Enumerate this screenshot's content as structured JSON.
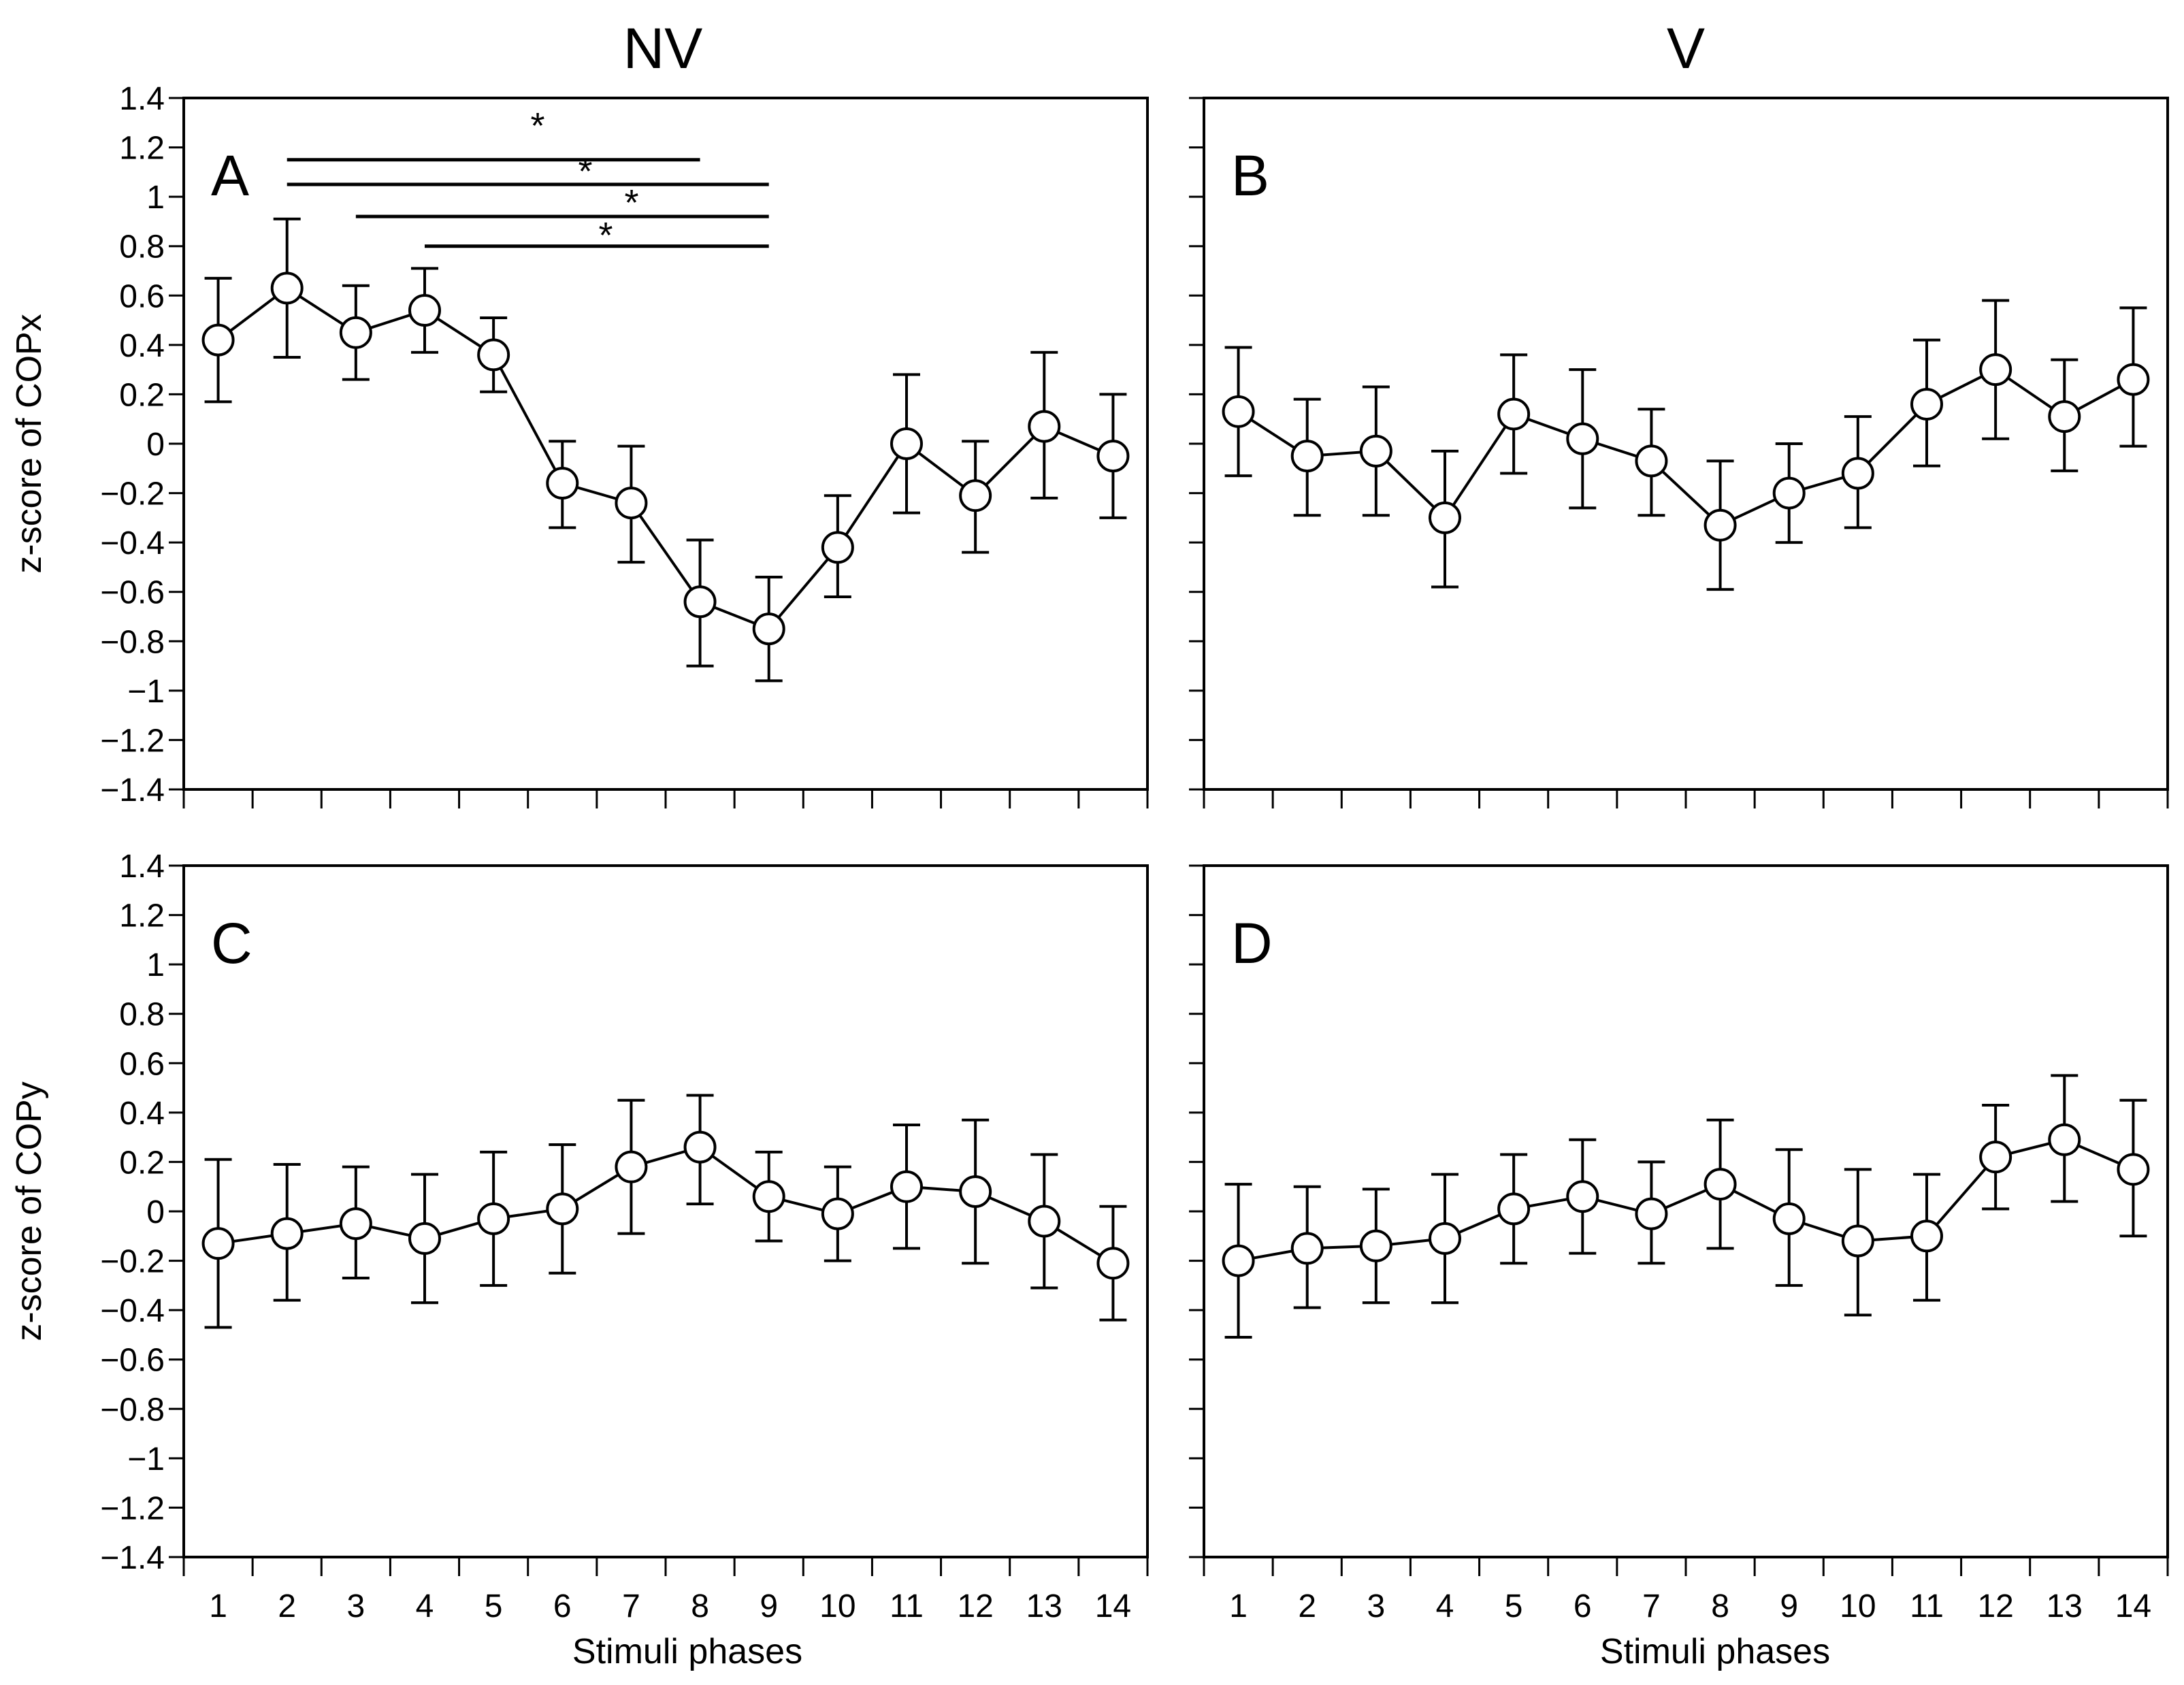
{
  "chart_data": {
    "type": "line",
    "column_titles": [
      "NV",
      "V"
    ],
    "x_categories": [
      "1",
      "2",
      "3",
      "4",
      "5",
      "6",
      "7",
      "8",
      "9",
      "10",
      "11",
      "12",
      "13",
      "14"
    ],
    "y_ticks": [
      "1.4",
      "1.2",
      "1",
      "0.8",
      "0.6",
      "0.4",
      "0.2",
      "0",
      "−0.2",
      "−0.4",
      "−0.6",
      "−0.8",
      "−1",
      "−1.2",
      "−1.4"
    ],
    "ylim": [
      -1.4,
      1.4
    ],
    "xlabel": "Stimuli phases",
    "ylabels": [
      "z-score of COPx",
      "z-score of COPy"
    ],
    "panels": [
      {
        "label": "A",
        "row": 0,
        "col": 0,
        "x": [
          1,
          2,
          3,
          4,
          5,
          6,
          7,
          8,
          9,
          10,
          11,
          12,
          13,
          14
        ],
        "mean": [
          0.42,
          0.63,
          0.45,
          0.54,
          0.36,
          -0.16,
          -0.24,
          -0.64,
          -0.75,
          -0.42,
          0.0,
          -0.21,
          0.07,
          -0.05
        ],
        "upper": [
          0.67,
          0.91,
          0.64,
          0.71,
          0.51,
          0.01,
          -0.01,
          -0.39,
          -0.54,
          -0.21,
          0.28,
          0.01,
          0.37,
          0.2
        ],
        "lower": [
          0.17,
          0.35,
          0.26,
          0.37,
          0.21,
          -0.34,
          -0.48,
          -0.9,
          -0.96,
          -0.62,
          -0.28,
          -0.44,
          -0.22,
          -0.3
        ],
        "significance": [
          {
            "from": 2,
            "to": 8,
            "label": "*"
          },
          {
            "from": 2,
            "to": 9,
            "label": "*"
          },
          {
            "from": 3,
            "to": 9,
            "label": "*"
          },
          {
            "from": 4,
            "to": 9,
            "label": "*"
          }
        ]
      },
      {
        "label": "B",
        "row": 0,
        "col": 1,
        "x": [
          1,
          2,
          3,
          4,
          5,
          6,
          7,
          8,
          9,
          10,
          11,
          12,
          13,
          14
        ],
        "mean": [
          0.13,
          -0.05,
          -0.03,
          -0.3,
          0.12,
          0.02,
          -0.07,
          -0.33,
          -0.2,
          -0.12,
          0.16,
          0.3,
          0.11,
          0.26
        ],
        "upper": [
          0.39,
          0.18,
          0.23,
          -0.03,
          0.36,
          0.3,
          0.14,
          -0.07,
          0.0,
          0.11,
          0.42,
          0.58,
          0.34,
          0.55
        ],
        "lower": [
          -0.13,
          -0.29,
          -0.29,
          -0.58,
          -0.12,
          -0.26,
          -0.29,
          -0.59,
          -0.4,
          -0.34,
          -0.09,
          0.02,
          -0.11,
          -0.01
        ],
        "significance": []
      },
      {
        "label": "C",
        "row": 1,
        "col": 0,
        "x": [
          1,
          2,
          3,
          4,
          5,
          6,
          7,
          8,
          9,
          10,
          11,
          12,
          13,
          14
        ],
        "mean": [
          -0.13,
          -0.09,
          -0.05,
          -0.11,
          -0.03,
          0.01,
          0.18,
          0.26,
          0.06,
          -0.01,
          0.1,
          0.08,
          -0.04,
          -0.21
        ],
        "upper": [
          0.21,
          0.19,
          0.18,
          0.15,
          0.24,
          0.27,
          0.45,
          0.47,
          0.24,
          0.18,
          0.35,
          0.37,
          0.23,
          0.02
        ],
        "lower": [
          -0.47,
          -0.36,
          -0.27,
          -0.37,
          -0.3,
          -0.25,
          -0.09,
          0.03,
          -0.12,
          -0.2,
          -0.15,
          -0.21,
          -0.31,
          -0.44
        ],
        "significance": []
      },
      {
        "label": "D",
        "row": 1,
        "col": 1,
        "x": [
          1,
          2,
          3,
          4,
          5,
          6,
          7,
          8,
          9,
          10,
          11,
          12,
          13,
          14
        ],
        "mean": [
          -0.2,
          -0.15,
          -0.14,
          -0.11,
          0.01,
          0.06,
          -0.01,
          0.11,
          -0.03,
          -0.12,
          -0.1,
          0.22,
          0.29,
          0.17
        ],
        "upper": [
          0.11,
          0.1,
          0.09,
          0.15,
          0.23,
          0.29,
          0.2,
          0.37,
          0.25,
          0.17,
          0.15,
          0.43,
          0.55,
          0.45
        ],
        "lower": [
          -0.51,
          -0.39,
          -0.37,
          -0.37,
          -0.21,
          -0.17,
          -0.21,
          -0.15,
          -0.3,
          -0.42,
          -0.36,
          0.01,
          0.04,
          -0.1
        ],
        "significance": []
      }
    ]
  }
}
